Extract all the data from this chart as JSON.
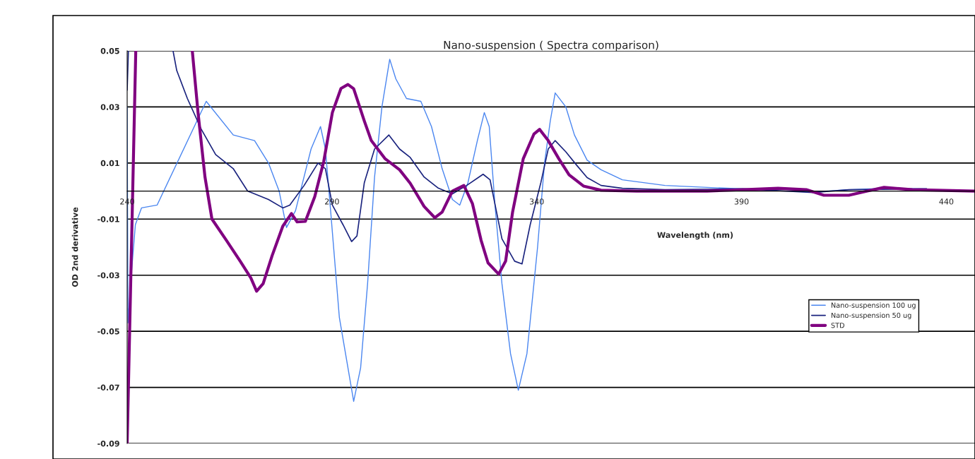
{
  "chart_data": {
    "type": "line",
    "title": "Nano-suspension ( Spectra comparison)",
    "xlabel": "Wavelength (nm)",
    "ylabel": "OD 2nd derivative",
    "xlim": [
      240,
      447
    ],
    "xticks": [
      240,
      290,
      340,
      390,
      440
    ],
    "ylim": [
      -0.09,
      0.05
    ],
    "yticks": [
      -0.09,
      -0.07,
      -0.05,
      -0.03,
      -0.01,
      0.01,
      0.03,
      0.05
    ],
    "grid": "y",
    "legend": "right",
    "line_style": "solid",
    "marker": "none",
    "series": [
      {
        "name": "Nano-suspension 100 ug",
        "color": "#4a86f0",
        "x": [
          240,
          240.2,
          241,
          242,
          243.5,
          247.3,
          259.3,
          265.9,
          271.1,
          274.5,
          277.1,
          278.9,
          281.1,
          284.9,
          287.2,
          288.4,
          289.7,
          291.8,
          295.3,
          297.0,
          298.7,
          300.4,
          302.2,
          304.1,
          305.6,
          308.2,
          311.7,
          314.3,
          316.9,
          319.4,
          321.2,
          323.2,
          325.5,
          327.2,
          328.4,
          329.8,
          331.5,
          333.6,
          335.5,
          337.6,
          340.2,
          341.9,
          343.3,
          344.5,
          347.1,
          349.2,
          352.3,
          355.7,
          360.9,
          371.3,
          381.6,
          390.3,
          398.9,
          407.5,
          416.2,
          424.8,
          435.2
        ],
        "values": [
          0.03,
          -0.047,
          -0.03,
          -0.012,
          -0.006,
          -0.005,
          0.032,
          0.02,
          0.018,
          0.01,
          0.0,
          -0.013,
          -0.007,
          0.015,
          0.023,
          0.015,
          -0.0075,
          -0.045,
          -0.075,
          -0.063,
          -0.033,
          0.005,
          0.03,
          0.047,
          0.04,
          0.033,
          0.032,
          0.023,
          0.008,
          -0.003,
          -0.005,
          0.003,
          0.018,
          0.028,
          0.023,
          -0.005,
          -0.033,
          -0.058,
          -0.071,
          -0.058,
          -0.02,
          0.01,
          0.025,
          0.035,
          0.03,
          0.02,
          0.011,
          0.0076,
          0.004,
          0.002,
          0.0013,
          0.0008,
          0.0008,
          -0.0003,
          0.0005,
          0.001,
          0.0008
        ]
      },
      {
        "name": "Nano-suspension 50 ug",
        "color": "#1a237e",
        "x": [
          240,
          240.3,
          240.4,
          251.2,
          252.1,
          254.7,
          258.1,
          261.6,
          265.9,
          269.4,
          274.5,
          278.0,
          279.7,
          283.2,
          286.6,
          288.4,
          290.1,
          292.7,
          294.8,
          296.1,
          297.9,
          300.4,
          303.9,
          306.5,
          309.1,
          312.5,
          316.0,
          319.4,
          322.9,
          326.9,
          328.6,
          331.5,
          334.6,
          336.4,
          338.4,
          341.0,
          342.8,
          344.5,
          347.1,
          349.7,
          352.3,
          355.7,
          360.9,
          371.3,
          390.3,
          407.5,
          416.2,
          435.2
        ],
        "values": [
          0.036,
          0.05,
          null,
          0.05,
          0.043,
          0.033,
          0.022,
          0.013,
          0.008,
          0.0,
          -0.003,
          -0.006,
          -0.005,
          0.002,
          0.01,
          0.008,
          -0.005,
          -0.012,
          -0.018,
          -0.016,
          0.003,
          0.015,
          0.02,
          0.015,
          0.012,
          0.005,
          0.001,
          -0.001,
          0.002,
          0.006,
          0.004,
          -0.017,
          -0.025,
          -0.026,
          -0.012,
          0.003,
          0.015,
          0.018,
          0.014,
          0.0093,
          0.0048,
          0.002,
          0.001,
          0.0005,
          0.0008,
          -0.0005,
          0.0005,
          0.0008
        ]
      },
      {
        "name": "STD",
        "color": "#800080",
        "x": [
          240,
          242.1,
          242.2,
          255.9,
          257.3,
          259.0,
          260.7,
          264.2,
          267.6,
          270.2,
          271.6,
          273.2,
          275.4,
          278.0,
          280.1,
          281.5,
          283.5,
          285.8,
          288.0,
          290.1,
          292.2,
          293.9,
          295.3,
          297.9,
          299.6,
          303.0,
          306.5,
          309.1,
          312.5,
          315.1,
          316.9,
          319.4,
          322.2,
          324.3,
          326.4,
          328.1,
          330.7,
          332.4,
          334.1,
          336.7,
          339.3,
          340.7,
          342.8,
          345.4,
          347.9,
          351.4,
          355.7,
          364.4,
          381.6,
          398.9,
          405.8,
          410.1,
          416.2,
          421.3,
          424.8,
          431.7,
          447
        ],
        "values": [
          -0.09,
          0.05,
          null,
          0.05,
          0.028,
          0.005,
          -0.01,
          -0.0175,
          -0.025,
          -0.031,
          -0.0357,
          -0.033,
          -0.023,
          -0.0125,
          -0.008,
          -0.011,
          -0.0108,
          -0.002,
          0.0106,
          0.028,
          0.0366,
          0.038,
          0.0365,
          0.025,
          0.018,
          0.0115,
          0.0076,
          0.0028,
          -0.0055,
          -0.0095,
          -0.0075,
          0.0,
          0.002,
          -0.0045,
          -0.0175,
          -0.0256,
          -0.0296,
          -0.025,
          -0.0075,
          0.0115,
          0.0203,
          0.022,
          0.018,
          0.0115,
          0.0058,
          0.0018,
          0.0003,
          0.0,
          0.0,
          0.001,
          0.0005,
          -0.0015,
          -0.0015,
          0.0002,
          0.0013,
          0.0005,
          0.0
        ]
      }
    ]
  }
}
